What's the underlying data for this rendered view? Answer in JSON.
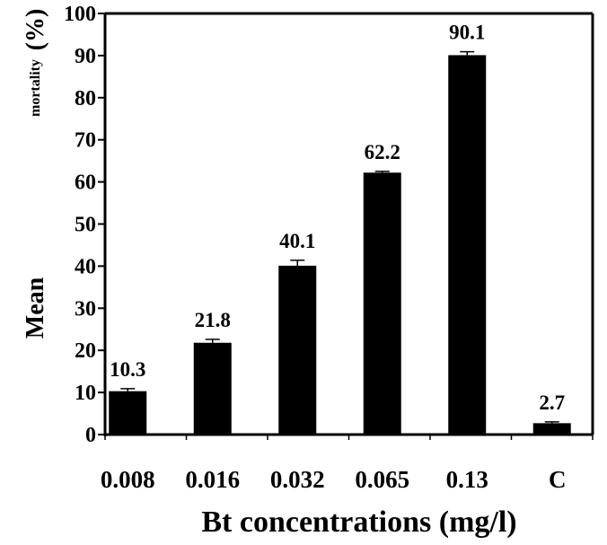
{
  "chart_data": {
    "type": "bar",
    "categories": [
      "0.008",
      "0.016",
      "0.032",
      "0.065",
      "0.13",
      "C"
    ],
    "values": [
      10.3,
      21.8,
      40.1,
      62.2,
      90.1,
      2.7
    ],
    "errors": [
      0.6,
      0.8,
      1.3,
      0.3,
      0.8,
      0.3
    ],
    "data_labels": [
      "10.3",
      "21.8",
      "40.1",
      "62.2",
      "90.1",
      "2.7"
    ],
    "xlabel": "Bt concentrations (mg/l)",
    "ylabel_parts": [
      "Mean",
      "mortality",
      "(%)"
    ],
    "yticks": [
      "0",
      "10",
      "20",
      "30",
      "40",
      "50",
      "60",
      "70",
      "80",
      "90",
      "100"
    ],
    "ylim": [
      0,
      100
    ],
    "bar_color": "#000000",
    "grid": false
  }
}
